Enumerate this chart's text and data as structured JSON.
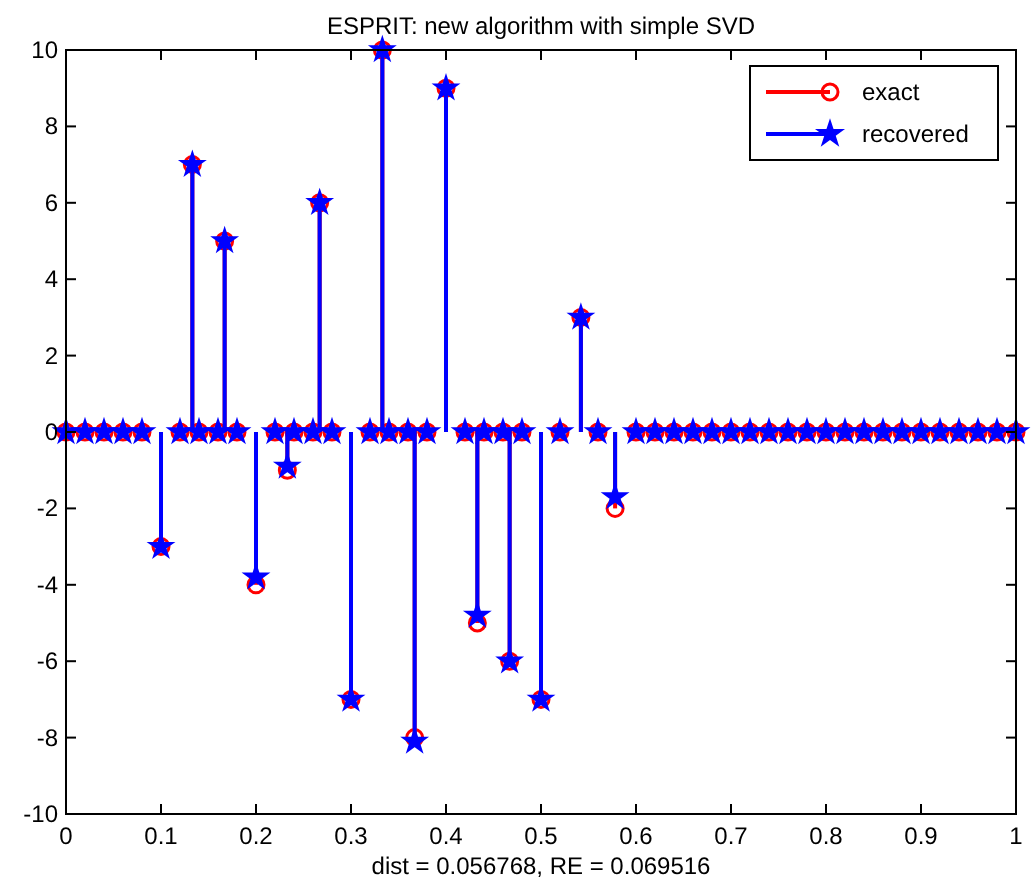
{
  "chart_data": {
    "type": "lollipop",
    "title": "ESPRIT: new algorithm with simple SVD",
    "xlabel": "dist = 0.056768, RE = 0.069516",
    "x": [
      0,
      0.02,
      0.04,
      0.06,
      0.08,
      0.1,
      0.12,
      0.133,
      0.14,
      0.16,
      0.167,
      0.18,
      0.2,
      0.22,
      0.233,
      0.24,
      0.26,
      0.267,
      0.28,
      0.3,
      0.32,
      0.333,
      0.34,
      0.36,
      0.367,
      0.38,
      0.4,
      0.42,
      0.433,
      0.44,
      0.46,
      0.467,
      0.48,
      0.5,
      0.52,
      0.542,
      0.56,
      0.578,
      0.6,
      0.62,
      0.64,
      0.66,
      0.68,
      0.7,
      0.72,
      0.74,
      0.76,
      0.78,
      0.8,
      0.82,
      0.84,
      0.86,
      0.88,
      0.9,
      0.92,
      0.94,
      0.96,
      0.98,
      1
    ],
    "series": [
      {
        "name": "exact",
        "color": "#ff0000",
        "marker": "circle",
        "values": [
          0,
          0,
          0,
          0,
          0,
          -3,
          0,
          7,
          0,
          0,
          5,
          0,
          -4,
          0,
          -1,
          0,
          0,
          6,
          0,
          -7,
          0,
          10,
          0,
          0,
          -8,
          0,
          9,
          0,
          -5,
          0,
          0,
          -6,
          0,
          -7,
          0,
          3,
          0,
          -2,
          0,
          0,
          0,
          0,
          0,
          0,
          0,
          0,
          0,
          0,
          0,
          0,
          0,
          0,
          0,
          0,
          0,
          0,
          0,
          0,
          0
        ]
      },
      {
        "name": "recovered",
        "color": "#0000ff",
        "marker": "star",
        "values": [
          0,
          0,
          0,
          0,
          0,
          -3,
          0,
          7,
          0,
          0,
          5,
          0,
          -3.8,
          0,
          -0.9,
          0,
          0,
          6,
          0,
          -7,
          0,
          10,
          0,
          0,
          -8.1,
          0,
          9,
          0,
          -4.8,
          0,
          0,
          -6,
          0,
          -7,
          0,
          3,
          0,
          -1.7,
          0,
          0,
          0,
          0,
          0,
          0,
          0,
          0,
          0,
          0,
          0,
          0,
          0,
          0,
          0,
          0,
          0,
          0,
          0,
          0,
          0
        ]
      }
    ],
    "xlim": [
      0,
      1
    ],
    "xticks": [
      0,
      0.1,
      0.2,
      0.3,
      0.4,
      0.5,
      0.6,
      0.7,
      0.8,
      0.9,
      1
    ],
    "ylim": [
      -10,
      10
    ],
    "yticks": [
      -10,
      -8,
      -6,
      -4,
      -2,
      0,
      2,
      4,
      6,
      8,
      10
    ],
    "grid": false,
    "legend": "top right",
    "line_style": "solid"
  }
}
